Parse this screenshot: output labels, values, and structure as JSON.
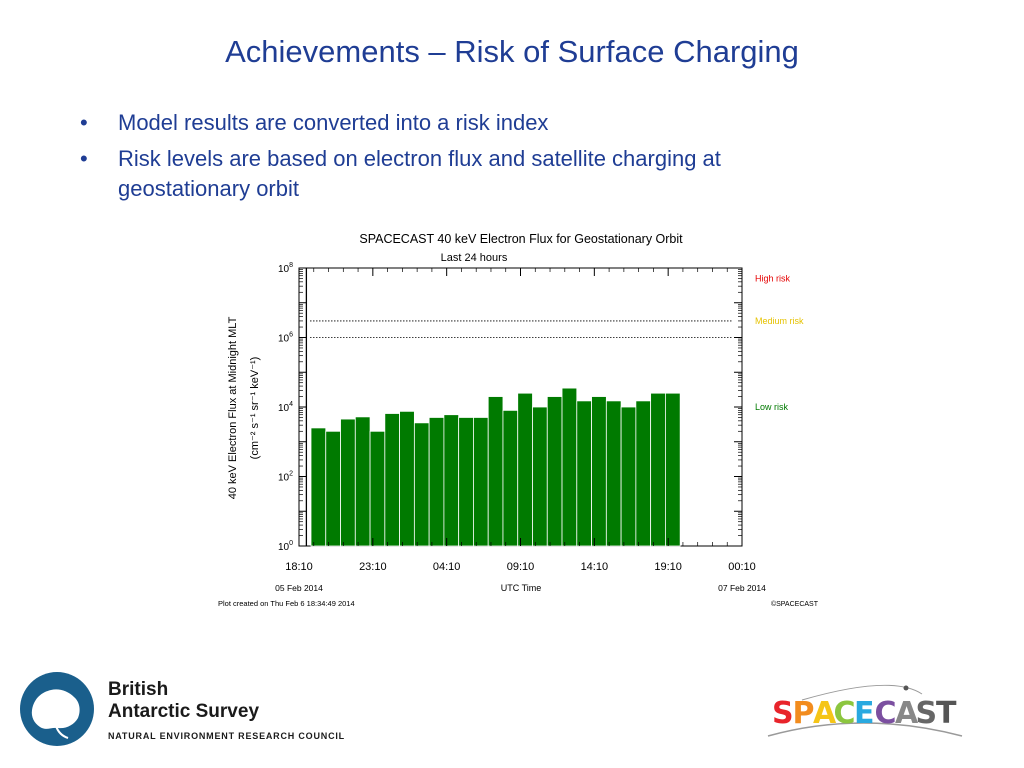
{
  "slide": {
    "title": "Achievements – Risk of Surface Charging",
    "bullets": [
      "Model results are converted into a risk index",
      "Risk levels are based on electron flux and satellite charging at geostationary orbit"
    ],
    "bullet_glyph": "•"
  },
  "chart_data": {
    "type": "bar",
    "title": "SPACECAST 40 keV Electron Flux for Geostationary Orbit",
    "subtitle": "Last 24 hours",
    "xlabel": "UTC Time",
    "ylabel": "40 keV Electron Flux at Midnight MLT",
    "ylabel_units": "(cm⁻² s⁻¹ sr⁻¹ keV⁻¹)",
    "y_scale": "log",
    "ylim": [
      1,
      100000000
    ],
    "y_tick_labels": [
      {
        "base": "10",
        "exp": "0",
        "value": 1
      },
      {
        "base": "10",
        "exp": "2",
        "value": 100
      },
      {
        "base": "10",
        "exp": "4",
        "value": 10000
      },
      {
        "base": "10",
        "exp": "6",
        "value": 1000000
      },
      {
        "base": "10",
        "exp": "8",
        "value": 100000000
      }
    ],
    "x_tick_labels": [
      "18:10",
      "23:10",
      "04:10",
      "09:10",
      "14:10",
      "19:10",
      "00:10"
    ],
    "x_date_labels": [
      {
        "text": "05 Feb 2014",
        "at": "18:10"
      },
      {
        "text": "07 Feb 2014",
        "at": "00:10"
      }
    ],
    "bar_interval_hours": 1,
    "values": [
      2500,
      2000,
      4500,
      5200,
      2000,
      6500,
      7500,
      3500,
      5000,
      6000,
      5000,
      5000,
      20000,
      8000,
      25000,
      10000,
      20000,
      35000,
      15000,
      20000,
      15000,
      10000,
      15000,
      25000,
      25000
    ],
    "bar_color": "#007a00",
    "current_time_line": "18:40",
    "thresholds": [
      {
        "name": "High risk",
        "value": 3000000
      },
      {
        "name": "Medium risk",
        "value": 1000000
      }
    ],
    "risk_labels": [
      {
        "text": "High risk",
        "color": "#e60000",
        "level": 50000000
      },
      {
        "text": "Medium risk",
        "color": "#e6c200",
        "level": 3000000
      },
      {
        "text": "Low risk",
        "color": "#007a00",
        "level": 10000
      }
    ],
    "footer_left": "Plot created on Thu Feb  6 18:34:49 2014",
    "footer_right": "©SPACECAST"
  },
  "logos": {
    "bas_line1": "British",
    "bas_line2": "Antarctic Survey",
    "nerc": "NATURAL ENVIRONMENT RESEARCH COUNCIL",
    "spacecast_letters": [
      {
        "ch": "S",
        "color": "#e8242b"
      },
      {
        "ch": "P",
        "color": "#f28c1e"
      },
      {
        "ch": "A",
        "color": "#f5c518"
      },
      {
        "ch": "C",
        "color": "#8cc63f"
      },
      {
        "ch": "E",
        "color": "#29a9e0"
      },
      {
        "ch": "C",
        "color": "#7b4fa0"
      },
      {
        "ch": "A",
        "color": "#888888"
      },
      {
        "ch": "S",
        "color": "#666666"
      },
      {
        "ch": "T",
        "color": "#555555"
      }
    ]
  }
}
